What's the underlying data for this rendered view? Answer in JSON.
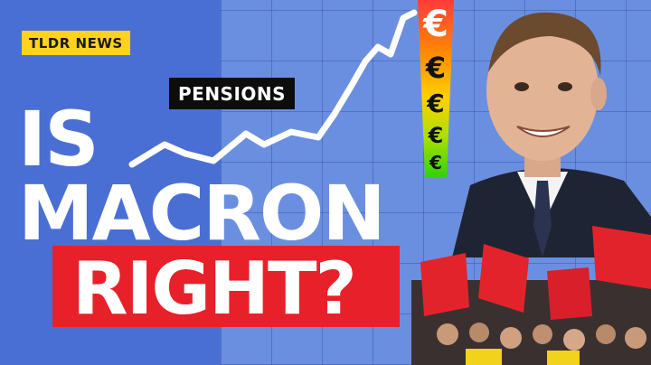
{
  "badge": {
    "label": "TLDR NEWS"
  },
  "chart_label": "PENSIONS",
  "headline": {
    "line1": "IS",
    "line2": "MACRON",
    "line3": "RIGHT?"
  },
  "euro_symbols": [
    "€",
    "€",
    "€",
    "€",
    "€"
  ],
  "colors": {
    "badge_bg": "#ffd21f",
    "headline_box": "#e8202a",
    "left_bg": "#4a6fd4",
    "right_bg": "#6b8fe0"
  },
  "illustrations": {
    "portrait": "smiling-man-in-suit",
    "crowd": "protest-crowd-with-red-flags"
  }
}
